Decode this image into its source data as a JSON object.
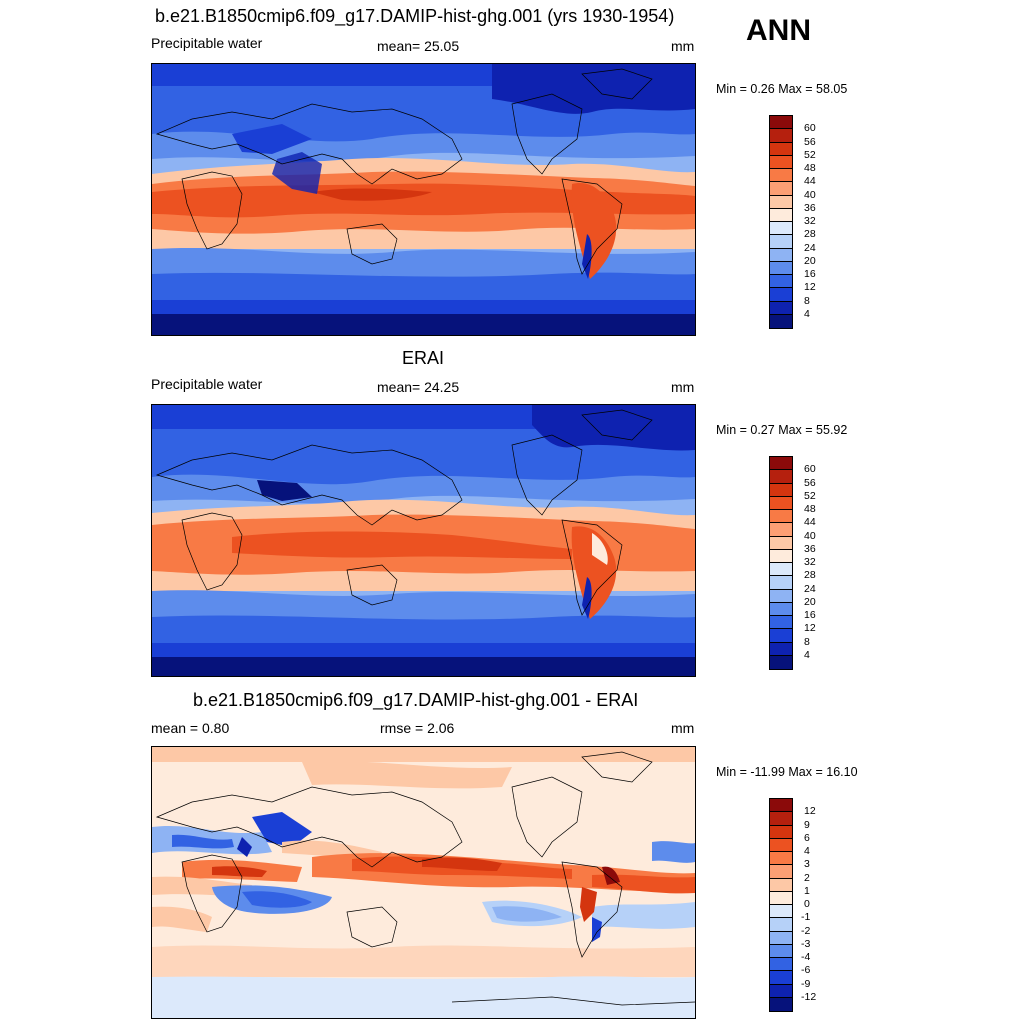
{
  "season": "ANN",
  "panels": [
    {
      "title": "b.e21.B1850cmip6.f09_g17.DAMIP-hist-ghg.001 (yrs 1930-1954)",
      "left_label": "Precipitable water",
      "center_label": "mean=  25.05",
      "units": "mm",
      "minmax": "Min =   0.26 Max =  58.05",
      "colorbar": {
        "labels": [
          "60",
          "56",
          "52",
          "48",
          "44",
          "40",
          "36",
          "32",
          "28",
          "24",
          "20",
          "16",
          "12",
          "8",
          "4"
        ],
        "colors": [
          "#8b0a0a",
          "#b5200e",
          "#d4350f",
          "#ec5221",
          "#f87a45",
          "#fc9f74",
          "#fdc8a6",
          "#feebdc",
          "#dce9fb",
          "#b6d1f8",
          "#8eb3f3",
          "#5d8cec",
          "#3262e3",
          "#1a3fd5",
          "#0e22b0",
          "#06127b"
        ]
      }
    },
    {
      "title": "ERAI",
      "left_label": "Precipitable water",
      "center_label": "mean=  24.25",
      "units": "mm",
      "minmax": "Min =   0.27 Max =  55.92",
      "colorbar": {
        "labels": [
          "60",
          "56",
          "52",
          "48",
          "44",
          "40",
          "36",
          "32",
          "28",
          "24",
          "20",
          "16",
          "12",
          "8",
          "4"
        ],
        "colors": [
          "#8b0a0a",
          "#b5200e",
          "#d4350f",
          "#ec5221",
          "#f87a45",
          "#fc9f74",
          "#fdc8a6",
          "#feebdc",
          "#dce9fb",
          "#b6d1f8",
          "#8eb3f3",
          "#5d8cec",
          "#3262e3",
          "#1a3fd5",
          "#0e22b0",
          "#06127b"
        ]
      }
    },
    {
      "title": "b.e21.B1850cmip6.f09_g17.DAMIP-hist-ghg.001 - ERAI",
      "left_label": "mean =   0.80",
      "center_label": "rmse =   2.06",
      "units": "mm",
      "minmax": "Min = -11.99 Max =  16.10",
      "colorbar": {
        "labels": [
          "12",
          "9",
          "6",
          "4",
          "3",
          "2",
          "1",
          "0",
          "-1",
          "-2",
          "-3",
          "-4",
          "-6",
          "-9",
          "-12"
        ],
        "colors": [
          "#8b0a0a",
          "#b5200e",
          "#d4350f",
          "#ec5221",
          "#f87a45",
          "#fc9f74",
          "#fdc8a6",
          "#feebdc",
          "#dce9fb",
          "#b6d1f8",
          "#8eb3f3",
          "#5d8cec",
          "#3262e3",
          "#1a3fd5",
          "#0e22b0",
          "#06127b"
        ]
      }
    }
  ]
}
